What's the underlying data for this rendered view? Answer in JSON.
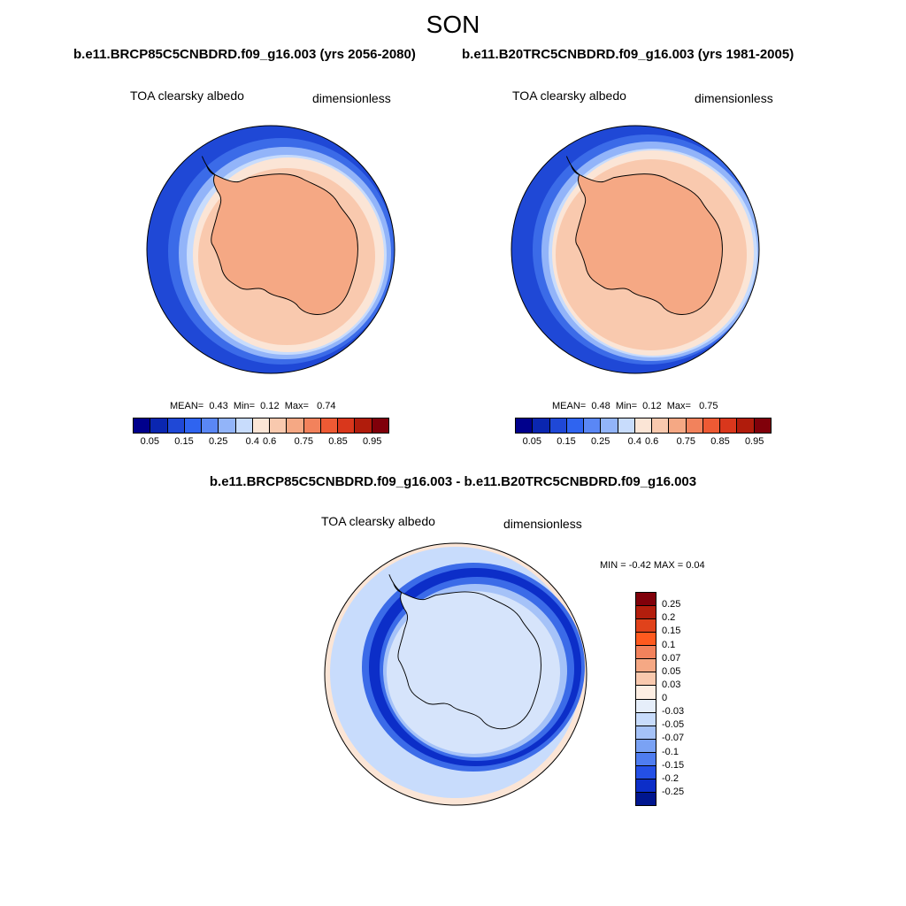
{
  "season": "SON",
  "panels": [
    {
      "case_title": "b.e11.BRCP85C5CNBDRD.f09_g16.003 (yrs 2056-2080)",
      "variable": "TOA clearsky albedo",
      "units": "dimensionless",
      "stats": {
        "mean_label": "MEAN=",
        "mean": "0.43",
        "min_label": "Min=",
        "min": "0.12",
        "max_label": "Max=",
        "max": "0.74"
      }
    },
    {
      "case_title": "b.e11.B20TRC5CNBDRD.f09_g16.003 (yrs 1981-2005)",
      "variable": "TOA clearsky albedo",
      "units": "dimensionless",
      "stats": {
        "mean_label": "MEAN=",
        "mean": "0.48",
        "min_label": "Min=",
        "min": "0.12",
        "max_label": "Max=",
        "max": "0.75"
      }
    }
  ],
  "diff_panel": {
    "title": "b.e11.BRCP85C5CNBDRD.f09_g16.003 - b.e11.B20TRC5CNBDRD.f09_g16.003",
    "variable": "TOA clearsky albedo",
    "units": "dimensionless",
    "minmax": "MIN =  -0.42 MAX =   0.04"
  },
  "colorbar_abs": {
    "colors": [
      "#00008c",
      "#0a26b0",
      "#1f48d6",
      "#2f64f0",
      "#5a87f5",
      "#92b4f9",
      "#c8dcfc",
      "#fbe5d6",
      "#f9c9ae",
      "#f5a884",
      "#f2825c",
      "#ee5a34",
      "#d9371c",
      "#b01c0c",
      "#80000a"
    ],
    "ticks": [
      "0.05",
      "0.15",
      "0.25",
      "0.4",
      "0.6",
      "0.75",
      "0.85",
      "0.95"
    ]
  },
  "colorbar_diff": {
    "colors": [
      "#80000a",
      "#b31e0d",
      "#e0421b",
      "#ff5a1f",
      "#f2825c",
      "#f5a884",
      "#f9c9ae",
      "#fdeee3",
      "#e6eefa",
      "#c8dcfc",
      "#a5c2f8",
      "#7aa2f4",
      "#4f7df0",
      "#2450e6",
      "#0c2ec8",
      "#00168f"
    ],
    "ticks": [
      "0.25",
      "0.2",
      "0.15",
      "0.1",
      "0.07",
      "0.05",
      "0.03",
      "0",
      "-0.03",
      "-0.05",
      "-0.07",
      "-0.1",
      "-0.15",
      "-0.2",
      "-0.25"
    ]
  }
}
